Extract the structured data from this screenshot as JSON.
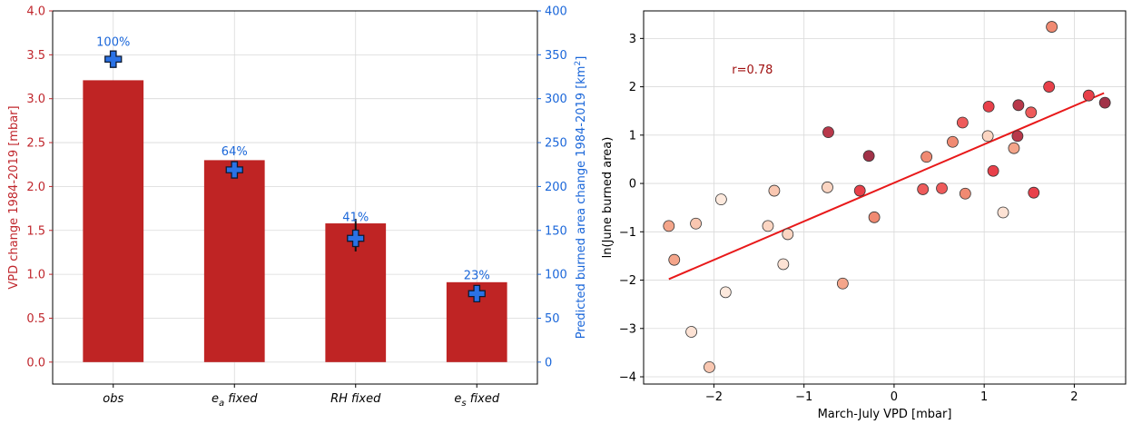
{
  "chart_data": [
    {
      "type": "bar",
      "categories": [
        "obs",
        "e_a fixed",
        "RH fixed",
        "e_s fixed"
      ],
      "category_labels": [
        {
          "base": "obs",
          "sub": "",
          "rest": ""
        },
        {
          "base": "e",
          "sub": "a",
          "rest": " fixed"
        },
        {
          "base": "RH fixed",
          "sub": "",
          "rest": ""
        },
        {
          "base": "e",
          "sub": "s",
          "rest": " fixed"
        }
      ],
      "values": [
        3.21,
        2.3,
        1.58,
        0.91
      ],
      "ylabel": "VPD change 1984-2019 [mbar]",
      "ylim": [
        -0.25,
        4.0
      ],
      "yticks": [
        "0.0",
        "0.5",
        "1.0",
        "1.5",
        "2.0",
        "2.5",
        "3.0",
        "3.5",
        "4.0"
      ],
      "bar_color": "#bf2424",
      "left_axis_color": "#c0272d",
      "secondary_axis": {
        "label_main": "Predicted burned area change 1984-2019 [km",
        "label_sup": "2",
        "label_end": "]",
        "ylim": [
          -25,
          400
        ],
        "yticks": [
          "0",
          "50",
          "100",
          "150",
          "200",
          "250",
          "300",
          "350",
          "400"
        ],
        "color": "#1a66d9",
        "markers": [
          345,
          219,
          141,
          78
        ],
        "errors": [
          [
            340,
            350
          ],
          [
            213,
            225
          ],
          [
            126,
            163
          ],
          [
            73,
            84
          ]
        ],
        "percent_labels": [
          "100%",
          "64%",
          "41%",
          "23%"
        ],
        "marker_color": "#2a72e6"
      },
      "grid": true
    },
    {
      "type": "scatter",
      "xlabel": "March-July VPD [mbar]",
      "ylabel": "ln(June burned area)",
      "xlim": [
        -2.78,
        2.57
      ],
      "ylim": [
        -4.15,
        3.57
      ],
      "xticks": [
        "−2",
        "−1",
        "0",
        "1",
        "2"
      ],
      "yticks": [
        "−4",
        "−3",
        "−2",
        "−1",
        "0",
        "1",
        "2",
        "3"
      ],
      "annotation": "r=0.78",
      "annotation_color": "#a01010",
      "fit_line": {
        "x": [
          -2.5,
          2.33
        ],
        "y": [
          -1.98,
          1.87
        ],
        "color": "#e8191a"
      },
      "grid": true,
      "points": [
        {
          "x": -2.5,
          "y": -0.88,
          "c": "#f4a58a"
        },
        {
          "x": -2.44,
          "y": -1.58,
          "c": "#f4a58a"
        },
        {
          "x": -2.25,
          "y": -3.07,
          "c": "#fde2d4"
        },
        {
          "x": -2.2,
          "y": -0.83,
          "c": "#f9c7b1"
        },
        {
          "x": -2.05,
          "y": -3.8,
          "c": "#f9c7b1"
        },
        {
          "x": -1.92,
          "y": -0.33,
          "c": "#fde9dd"
        },
        {
          "x": -1.87,
          "y": -2.25,
          "c": "#fde9dd"
        },
        {
          "x": -1.4,
          "y": -0.88,
          "c": "#fbd5c2"
        },
        {
          "x": -1.33,
          "y": -0.15,
          "c": "#f9c7b1"
        },
        {
          "x": -1.23,
          "y": -1.67,
          "c": "#fde2d4"
        },
        {
          "x": -1.18,
          "y": -1.05,
          "c": "#fbd5c2"
        },
        {
          "x": -0.74,
          "y": -0.08,
          "c": "#fbd5c2"
        },
        {
          "x": -0.73,
          "y": 1.06,
          "c": "#b8384a"
        },
        {
          "x": -0.57,
          "y": -2.07,
          "c": "#f4a58a"
        },
        {
          "x": -0.38,
          "y": -0.15,
          "c": "#e8404a"
        },
        {
          "x": -0.28,
          "y": 0.57,
          "c": "#a13248"
        },
        {
          "x": -0.22,
          "y": -0.7,
          "c": "#f08a72"
        },
        {
          "x": 0.32,
          "y": -0.12,
          "c": "#ee5b5b"
        },
        {
          "x": 0.36,
          "y": 0.55,
          "c": "#f08a72"
        },
        {
          "x": 0.53,
          "y": -0.1,
          "c": "#ee5b5b"
        },
        {
          "x": 0.65,
          "y": 0.86,
          "c": "#f08a72"
        },
        {
          "x": 0.76,
          "y": 1.26,
          "c": "#ee5b5b"
        },
        {
          "x": 0.79,
          "y": -0.21,
          "c": "#f08a72"
        },
        {
          "x": 1.04,
          "y": 0.98,
          "c": "#fbd5c2"
        },
        {
          "x": 1.05,
          "y": 1.59,
          "c": "#e8404a"
        },
        {
          "x": 1.1,
          "y": 0.26,
          "c": "#e8404a"
        },
        {
          "x": 1.21,
          "y": -0.6,
          "c": "#fde2d4"
        },
        {
          "x": 1.33,
          "y": 0.73,
          "c": "#f4a58a"
        },
        {
          "x": 1.37,
          "y": 0.98,
          "c": "#b8384a"
        },
        {
          "x": 1.38,
          "y": 1.62,
          "c": "#b8384a"
        },
        {
          "x": 1.52,
          "y": 1.47,
          "c": "#ee5b5b"
        },
        {
          "x": 1.55,
          "y": -0.19,
          "c": "#e8404a"
        },
        {
          "x": 1.72,
          "y": 2.0,
          "c": "#e8404a"
        },
        {
          "x": 1.75,
          "y": 3.24,
          "c": "#f08a72"
        },
        {
          "x": 2.16,
          "y": 1.82,
          "c": "#e8404a"
        },
        {
          "x": 2.34,
          "y": 1.67,
          "c": "#a13248"
        }
      ]
    }
  ]
}
